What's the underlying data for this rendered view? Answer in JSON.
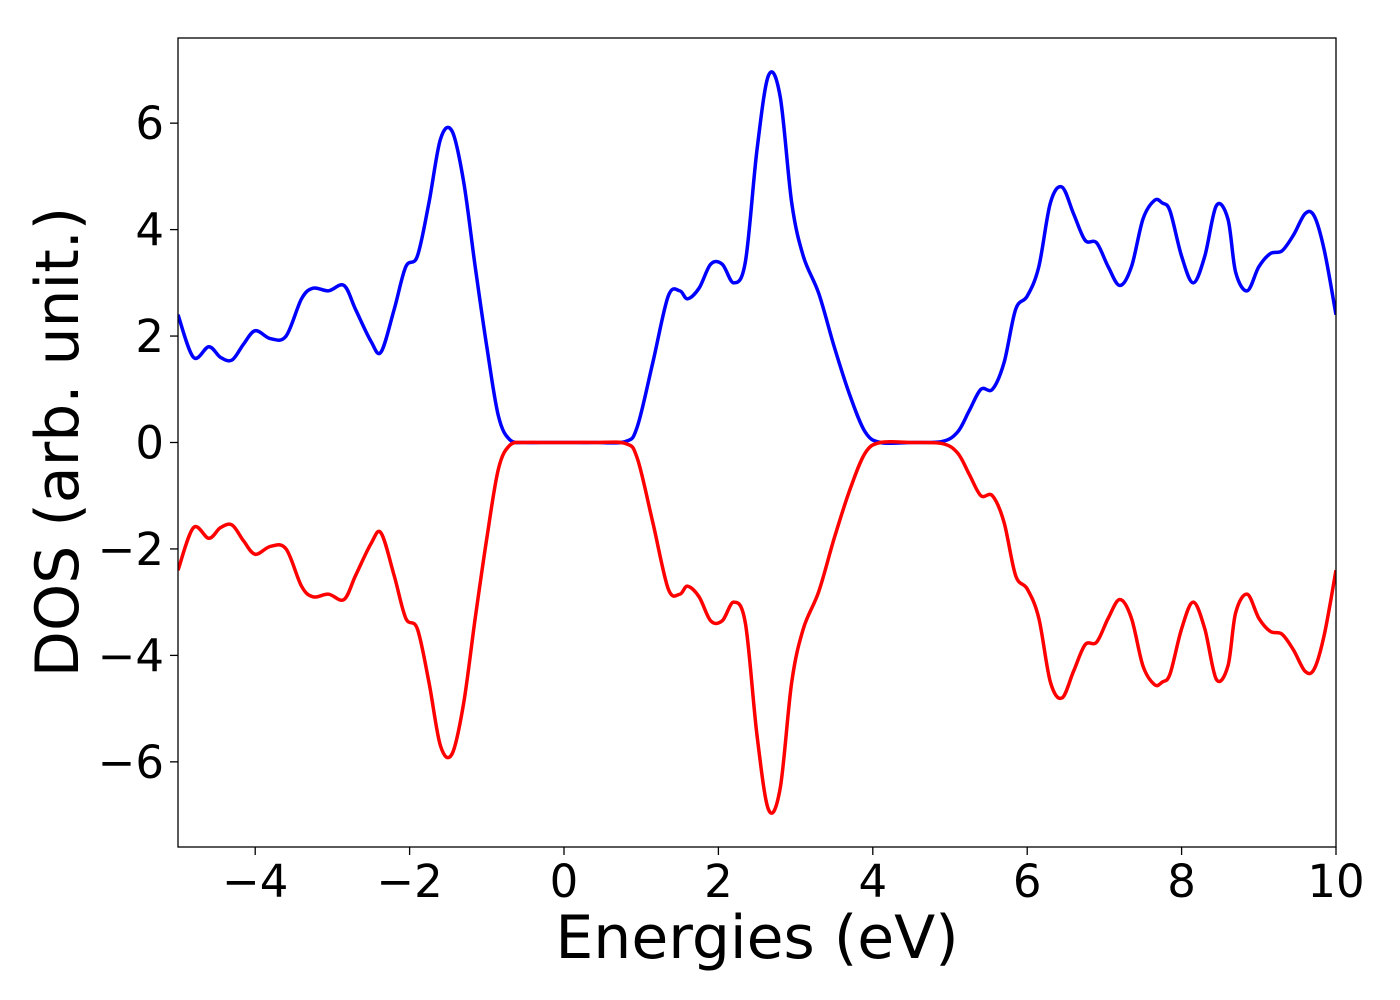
{
  "chart_data": {
    "type": "line",
    "title": "",
    "xlabel": "Energies (eV)",
    "ylabel": "DOS (arb. unit.)",
    "xlim": [
      -5,
      10
    ],
    "ylim": [
      -7.6,
      7.6
    ],
    "xticks": [
      -4,
      -2,
      0,
      2,
      4,
      6,
      8,
      10
    ],
    "xtick_labels": [
      "−4",
      "−2",
      "0",
      "2",
      "4",
      "6",
      "8",
      "10"
    ],
    "yticks": [
      6,
      4,
      2,
      0,
      -2,
      -4,
      -6
    ],
    "ytick_labels": [
      "6",
      "4",
      "2",
      "0",
      "−2",
      "−4",
      "−6"
    ],
    "grid": false,
    "legend": false,
    "series": [
      {
        "color": "#0000ff",
        "x": [
          -5.0,
          -4.8,
          -4.6,
          -4.45,
          -4.3,
          -4.15,
          -4.0,
          -3.8,
          -3.6,
          -3.4,
          -3.25,
          -3.05,
          -2.85,
          -2.7,
          -2.5,
          -2.37,
          -2.2,
          -2.05,
          -1.9,
          -1.75,
          -1.6,
          -1.45,
          -1.3,
          -1.15,
          -1.0,
          -0.85,
          -0.7,
          -0.5,
          -0.3,
          0.0,
          0.4,
          0.8,
          0.95,
          1.15,
          1.35,
          1.5,
          1.6,
          1.75,
          1.9,
          2.05,
          2.2,
          2.35,
          2.5,
          2.65,
          2.8,
          2.95,
          3.1,
          3.3,
          3.5,
          3.7,
          3.9,
          4.1,
          4.5,
          4.9,
          5.1,
          5.25,
          5.4,
          5.55,
          5.7,
          5.85,
          6.0,
          6.15,
          6.3,
          6.45,
          6.6,
          6.75,
          6.9,
          7.05,
          7.2,
          7.35,
          7.5,
          7.65,
          7.75,
          7.85,
          8.0,
          8.15,
          8.3,
          8.45,
          8.6,
          8.7,
          8.85,
          9.0,
          9.15,
          9.3,
          9.45,
          9.6,
          9.72,
          9.85,
          10.0
        ],
        "y": [
          2.4,
          1.6,
          1.8,
          1.6,
          1.55,
          1.85,
          2.1,
          1.95,
          2.0,
          2.7,
          2.9,
          2.85,
          2.95,
          2.5,
          1.9,
          1.7,
          2.5,
          3.3,
          3.5,
          4.5,
          5.7,
          5.85,
          4.9,
          3.3,
          1.8,
          0.5,
          0.05,
          0.0,
          0.0,
          0.0,
          0.0,
          0.02,
          0.3,
          1.5,
          2.75,
          2.85,
          2.7,
          2.9,
          3.35,
          3.35,
          3.0,
          3.4,
          5.5,
          6.9,
          6.5,
          4.5,
          3.5,
          2.8,
          1.8,
          0.9,
          0.2,
          0.0,
          0.0,
          0.02,
          0.2,
          0.6,
          1.0,
          1.0,
          1.5,
          2.5,
          2.75,
          3.3,
          4.5,
          4.8,
          4.3,
          3.8,
          3.75,
          3.3,
          2.95,
          3.3,
          4.2,
          4.55,
          4.5,
          4.35,
          3.5,
          3.0,
          3.5,
          4.45,
          4.2,
          3.2,
          2.85,
          3.3,
          3.55,
          3.6,
          3.9,
          4.3,
          4.25,
          3.6,
          2.4
        ]
      },
      {
        "color": "#ff0000",
        "x": [
          -5.0,
          -4.8,
          -4.6,
          -4.45,
          -4.3,
          -4.15,
          -4.0,
          -3.8,
          -3.6,
          -3.4,
          -3.25,
          -3.05,
          -2.85,
          -2.7,
          -2.5,
          -2.37,
          -2.2,
          -2.05,
          -1.9,
          -1.75,
          -1.6,
          -1.45,
          -1.3,
          -1.15,
          -1.0,
          -0.85,
          -0.7,
          -0.5,
          -0.3,
          0.0,
          0.4,
          0.8,
          0.95,
          1.15,
          1.35,
          1.5,
          1.6,
          1.75,
          1.9,
          2.05,
          2.2,
          2.35,
          2.5,
          2.65,
          2.8,
          2.95,
          3.1,
          3.3,
          3.5,
          3.7,
          3.9,
          4.1,
          4.5,
          4.9,
          5.1,
          5.25,
          5.4,
          5.55,
          5.7,
          5.85,
          6.0,
          6.15,
          6.3,
          6.45,
          6.6,
          6.75,
          6.9,
          7.05,
          7.2,
          7.35,
          7.5,
          7.65,
          7.75,
          7.85,
          8.0,
          8.15,
          8.3,
          8.45,
          8.6,
          8.7,
          8.85,
          9.0,
          9.15,
          9.3,
          9.45,
          9.6,
          9.72,
          9.85,
          10.0
        ],
        "y": [
          -2.4,
          -1.6,
          -1.8,
          -1.6,
          -1.55,
          -1.85,
          -2.1,
          -1.95,
          -2.0,
          -2.7,
          -2.9,
          -2.85,
          -2.95,
          -2.5,
          -1.9,
          -1.7,
          -2.5,
          -3.3,
          -3.5,
          -4.5,
          -5.7,
          -5.85,
          -4.9,
          -3.3,
          -1.8,
          -0.5,
          -0.05,
          0.0,
          0.0,
          0.0,
          0.0,
          -0.02,
          -0.3,
          -1.5,
          -2.75,
          -2.85,
          -2.7,
          -2.9,
          -3.35,
          -3.35,
          -3.0,
          -3.4,
          -5.5,
          -6.9,
          -6.5,
          -4.5,
          -3.5,
          -2.8,
          -1.8,
          -0.9,
          -0.2,
          0.0,
          0.0,
          -0.02,
          -0.2,
          -0.6,
          -1.0,
          -1.0,
          -1.5,
          -2.5,
          -2.75,
          -3.3,
          -4.5,
          -4.8,
          -4.3,
          -3.8,
          -3.75,
          -3.3,
          -2.95,
          -3.3,
          -4.2,
          -4.55,
          -4.5,
          -4.35,
          -3.5,
          -3.0,
          -3.5,
          -4.45,
          -4.2,
          -3.2,
          -2.85,
          -3.3,
          -3.55,
          -3.6,
          -3.9,
          -4.3,
          -4.25,
          -3.6,
          -2.4
        ]
      }
    ]
  }
}
